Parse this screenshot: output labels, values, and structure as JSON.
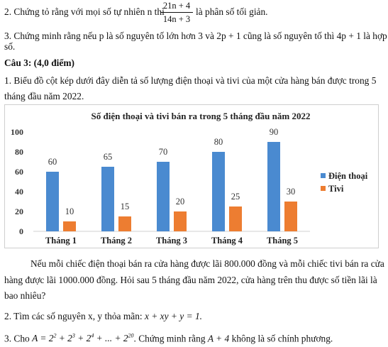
{
  "q2_top": {
    "prefix": "2. Chứng tỏ rằng với mọi số tự nhiên n thì",
    "frac_num": "21n + 4",
    "frac_den": "14n + 3",
    "suffix": "là phân số tối giản."
  },
  "q3_top": {
    "line1": "3. Chứng minh rằng nếu p là số nguyên tố lớn hơn 3 và 2p + 1 cũng là số nguyên tố thì 4p + 1 là hợp",
    "line2": "số."
  },
  "cau3_heading": "Câu 3: (4,0 điểm)",
  "q1": {
    "line1": "1. Biểu đồ cột kép dưới đây diễn tả số lượng điện thoại và tivi của một cửa hàng bán được trong 5",
    "line2": "tháng đầu năm 2022."
  },
  "chart_data": {
    "type": "bar",
    "title": "Số điện thoại và tivi bán ra trong 5 tháng đầu năm 2022",
    "categories": [
      "Tháng 1",
      "Tháng 2",
      "Tháng 3",
      "Tháng 4",
      "Tháng 5"
    ],
    "series": [
      {
        "name": "Điện thoại",
        "values": [
          60,
          65,
          70,
          80,
          90
        ],
        "color": "#4a8ad0"
      },
      {
        "name": "Tivi",
        "values": [
          10,
          15,
          20,
          25,
          30
        ],
        "color": "#ed7d31"
      }
    ],
    "ylim": [
      0,
      100
    ],
    "yticks": [
      0,
      20,
      40,
      60,
      80,
      100
    ],
    "grid": false,
    "legend": "right"
  },
  "after_chart": {
    "line1": "Nếu mỗi chiếc điện thoại bán ra cửa hàng được lãi 800.000 đồng và mỗi chiếc tivi bán ra cửa",
    "line2": "hàng được lãi 1000.000 đồng. Hỏi sau 5 tháng đầu năm 2022, cửa hàng trên thu được số tiền lãi là",
    "line3": "bao nhiêu?"
  },
  "q2_bottom": {
    "prefix": "2. Tìm các số nguyên x, y thỏa mãn:",
    "equation": "x + xy + y = 1."
  },
  "q3_bottom": {
    "prefix": "3. Cho",
    "expr_A": "A = 2",
    "expr_rest_1": " + 2",
    "expr_rest_2": " + 2",
    "expr_rest_3": " + ... + 2",
    "exp_1": "2",
    "exp_2": "3",
    "exp_3": "4",
    "exp_4": "20",
    "middle": ". Chứng minh rằng",
    "expr_B": "A + 4",
    "suffix": "không là số chính phương."
  }
}
